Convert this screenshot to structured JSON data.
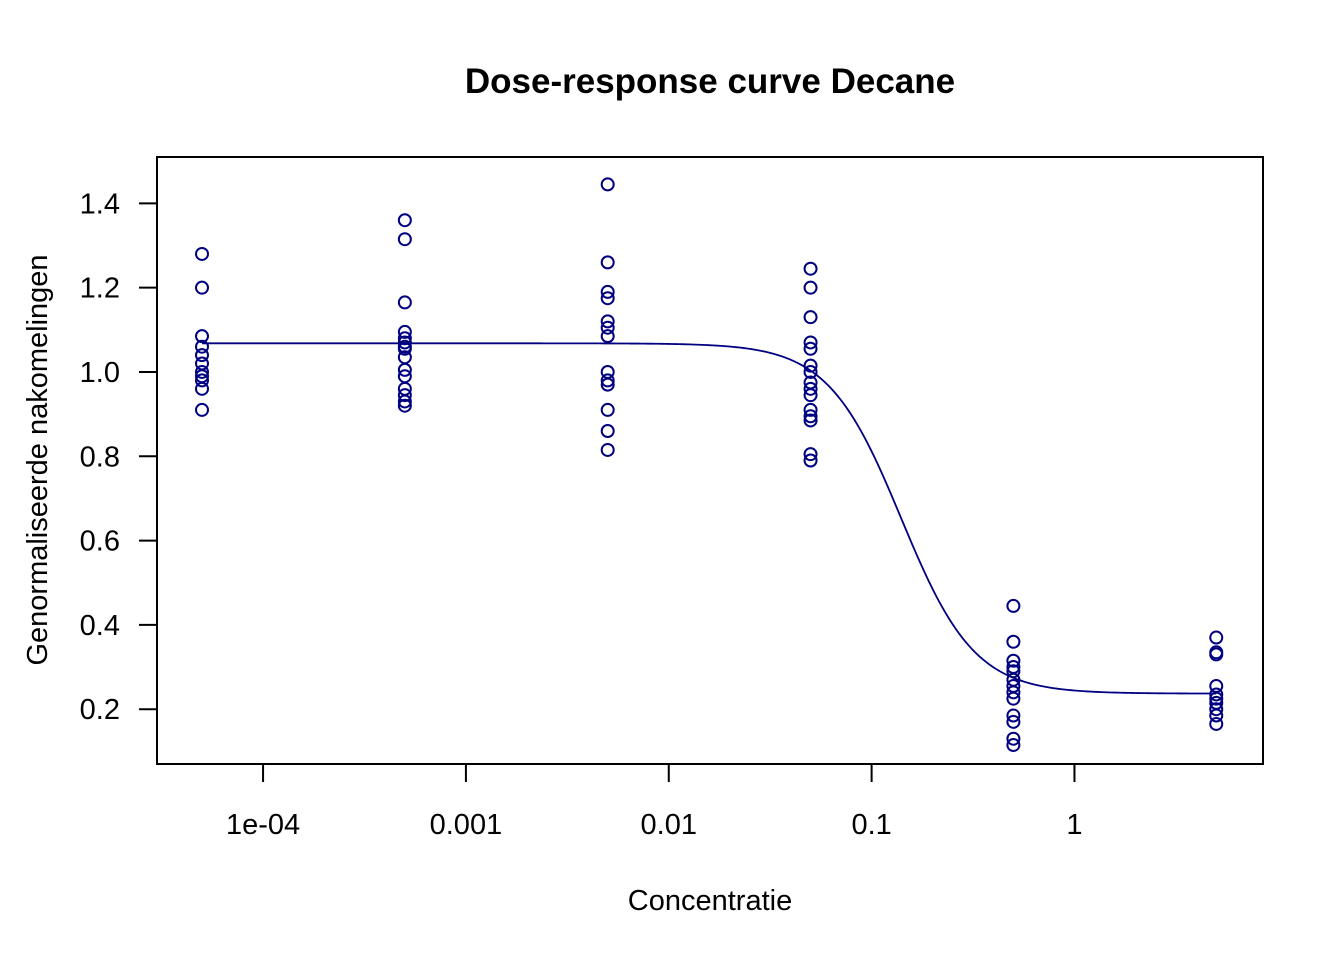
{
  "chart_data": {
    "type": "scatter",
    "title": "Dose-response curve Decane",
    "xlabel": "Concentratie",
    "ylabel": "Genormaliseerde nakomelingen",
    "x_scale": "log10",
    "xlim": [
      3e-05,
      8.5
    ],
    "ylim": [
      0.07,
      1.51
    ],
    "x_ticks": [
      0.0001,
      0.001,
      0.01,
      0.1,
      1
    ],
    "x_tick_labels": [
      "1e-04",
      "0.001",
      "0.01",
      "0.1",
      "1"
    ],
    "y_ticks": [
      0.2,
      0.4,
      0.6,
      0.8,
      1.0,
      1.2,
      1.4
    ],
    "y_tick_labels": [
      "0.2",
      "0.4",
      "0.6",
      "0.8",
      "1.0",
      "1.2",
      "1.4"
    ],
    "color": "#000080",
    "points": [
      {
        "x": 5e-05,
        "y": [
          1.28,
          1.2,
          1.085,
          1.06,
          1.04,
          1.02,
          1.0,
          0.99,
          0.98,
          0.96,
          0.91
        ]
      },
      {
        "x": 0.0005,
        "y": [
          1.36,
          1.315,
          1.165,
          1.095,
          1.08,
          1.07,
          1.06,
          1.055,
          1.035,
          1.005,
          0.99,
          0.96,
          0.945,
          0.93,
          0.92
        ]
      },
      {
        "x": 0.005,
        "y": [
          1.445,
          1.26,
          1.19,
          1.175,
          1.12,
          1.105,
          1.085,
          1.0,
          0.98,
          0.97,
          0.91,
          0.86,
          0.815
        ]
      },
      {
        "x": 0.05,
        "y": [
          1.245,
          1.2,
          1.13,
          1.07,
          1.055,
          1.015,
          1.0,
          0.975,
          0.96,
          0.945,
          0.91,
          0.895,
          0.885,
          0.805,
          0.79
        ]
      },
      {
        "x": 0.5,
        "y": [
          0.445,
          0.36,
          0.315,
          0.3,
          0.29,
          0.27,
          0.255,
          0.24,
          0.225,
          0.185,
          0.17,
          0.13,
          0.115
        ]
      },
      {
        "x": 5,
        "y": [
          0.37,
          0.335,
          0.33,
          0.255,
          0.235,
          0.225,
          0.215,
          0.2,
          0.185,
          0.165
        ]
      }
    ],
    "fit": {
      "model": "log-logistic",
      "lower": 0.237,
      "upper": 1.068,
      "ed50": 0.14,
      "slope": 2.4
    }
  }
}
